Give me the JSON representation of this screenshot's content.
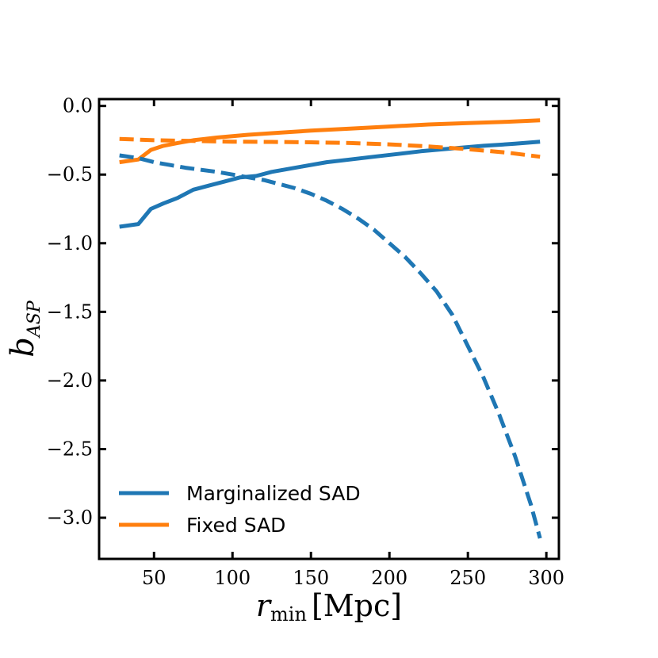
{
  "chart_data": {
    "type": "line",
    "title": "",
    "xlabel": "r_min [Mpc]",
    "xlabel_main": "r",
    "xlabel_sub": "min",
    "xlabel_unit": "[Mpc]",
    "ylabel": "b_{A_SP}",
    "ylabel_main": "b",
    "ylabel_sub": "ASP",
    "xlim": [
      15,
      308
    ],
    "ylim": [
      -3.3,
      0.05
    ],
    "xticks": [
      50,
      100,
      150,
      200,
      250,
      300
    ],
    "xtick_labels": [
      "50",
      "100",
      "150",
      "200",
      "250",
      "300"
    ],
    "yticks": [
      0.0,
      -0.5,
      -1.0,
      -1.5,
      -2.0,
      -2.5,
      -3.0
    ],
    "ytick_labels": [
      "0.0",
      "−0.5",
      "−1.0",
      "−1.5",
      "−2.0",
      "−2.5",
      "−3.0"
    ],
    "legend_position": "bottom-left",
    "series": [
      {
        "name": "Marginalized SAD",
        "style": "solid",
        "color": "#1f77b4",
        "in_legend": true,
        "x": [
          28,
          40,
          48,
          56,
          65,
          75,
          85,
          95,
          105,
          115,
          125,
          135,
          145,
          160,
          175,
          190,
          205,
          220,
          240,
          260,
          280,
          296
        ],
        "y": [
          -0.88,
          -0.86,
          -0.75,
          -0.71,
          -0.67,
          -0.61,
          -0.58,
          -0.55,
          -0.52,
          -0.51,
          -0.48,
          -0.46,
          -0.44,
          -0.41,
          -0.39,
          -0.37,
          -0.35,
          -0.33,
          -0.31,
          -0.29,
          -0.275,
          -0.26
        ]
      },
      {
        "name": "Fixed SAD",
        "style": "solid",
        "color": "#ff7f0e",
        "in_legend": true,
        "x": [
          28,
          40,
          48,
          56,
          65,
          75,
          90,
          110,
          130,
          150,
          175,
          200,
          225,
          250,
          275,
          296
        ],
        "y": [
          -0.41,
          -0.39,
          -0.32,
          -0.29,
          -0.27,
          -0.25,
          -0.23,
          -0.21,
          -0.195,
          -0.18,
          -0.165,
          -0.15,
          -0.135,
          -0.125,
          -0.115,
          -0.105
        ]
      },
      {
        "name": "Marginalized SAD (dashed)",
        "style": "dashed",
        "color": "#1f77b4",
        "in_legend": false,
        "x": [
          28,
          40,
          50,
          60,
          70,
          80,
          90,
          100,
          110,
          120,
          130,
          140,
          150,
          160,
          170,
          180,
          190,
          200,
          210,
          220,
          230,
          240,
          250,
          260,
          270,
          280,
          290,
          296
        ],
        "y": [
          -0.36,
          -0.38,
          -0.41,
          -0.43,
          -0.45,
          -0.465,
          -0.48,
          -0.5,
          -0.52,
          -0.54,
          -0.57,
          -0.6,
          -0.64,
          -0.69,
          -0.75,
          -0.82,
          -0.9,
          -1.0,
          -1.1,
          -1.22,
          -1.35,
          -1.52,
          -1.75,
          -1.98,
          -2.25,
          -2.55,
          -2.9,
          -3.15
        ]
      },
      {
        "name": "Fixed SAD (dashed)",
        "style": "dashed",
        "color": "#ff7f0e",
        "in_legend": false,
        "x": [
          28,
          50,
          75,
          100,
          125,
          150,
          175,
          200,
          225,
          250,
          275,
          296
        ],
        "y": [
          -0.24,
          -0.25,
          -0.255,
          -0.26,
          -0.262,
          -0.265,
          -0.27,
          -0.28,
          -0.295,
          -0.315,
          -0.34,
          -0.37
        ]
      }
    ]
  }
}
